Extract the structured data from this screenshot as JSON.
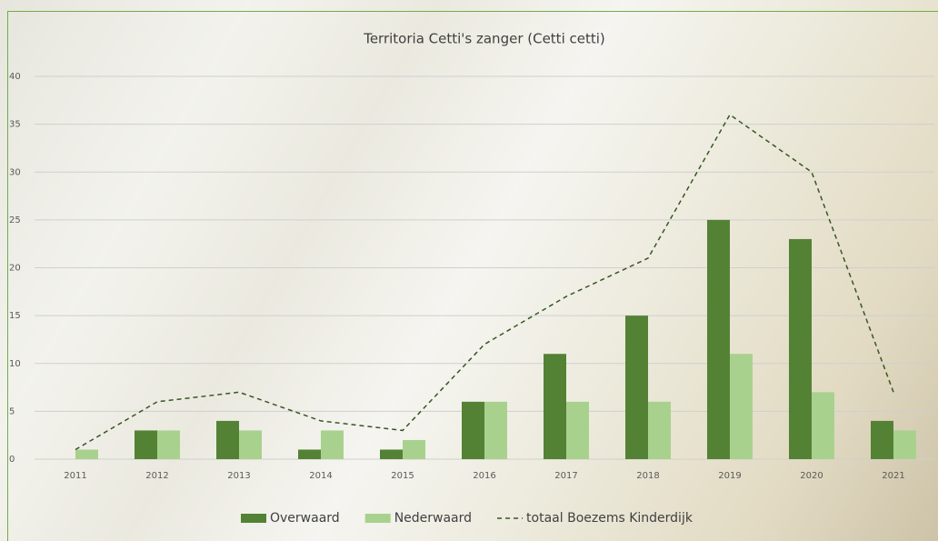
{
  "chart_data": {
    "type": "bar",
    "title": "Territoria Cetti's zanger (Cetti cetti)",
    "categories": [
      "2011",
      "2012",
      "2013",
      "2014",
      "2015",
      "2016",
      "2017",
      "2018",
      "2019",
      "2020",
      "2021"
    ],
    "series": [
      {
        "name": "Overwaard",
        "color": "#548235",
        "values": [
          0,
          3,
          4,
          1,
          1,
          6,
          11,
          15,
          25,
          23,
          4
        ]
      },
      {
        "name": "Nederwaard",
        "color": "#a9d18e",
        "values": [
          1,
          3,
          3,
          3,
          2,
          6,
          6,
          6,
          11,
          7,
          3
        ]
      },
      {
        "name": "totaal Boezems Kinderdijk",
        "color": "#375623",
        "type": "line",
        "dashed": true,
        "values": [
          1,
          6,
          7,
          4,
          3,
          12,
          17,
          21,
          36,
          30,
          7
        ]
      }
    ],
    "ylim": [
      0,
      40
    ],
    "yticks": [
      0,
      5,
      10,
      15,
      20,
      25,
      30,
      35,
      40
    ],
    "grid": true,
    "legend": "bottom"
  }
}
